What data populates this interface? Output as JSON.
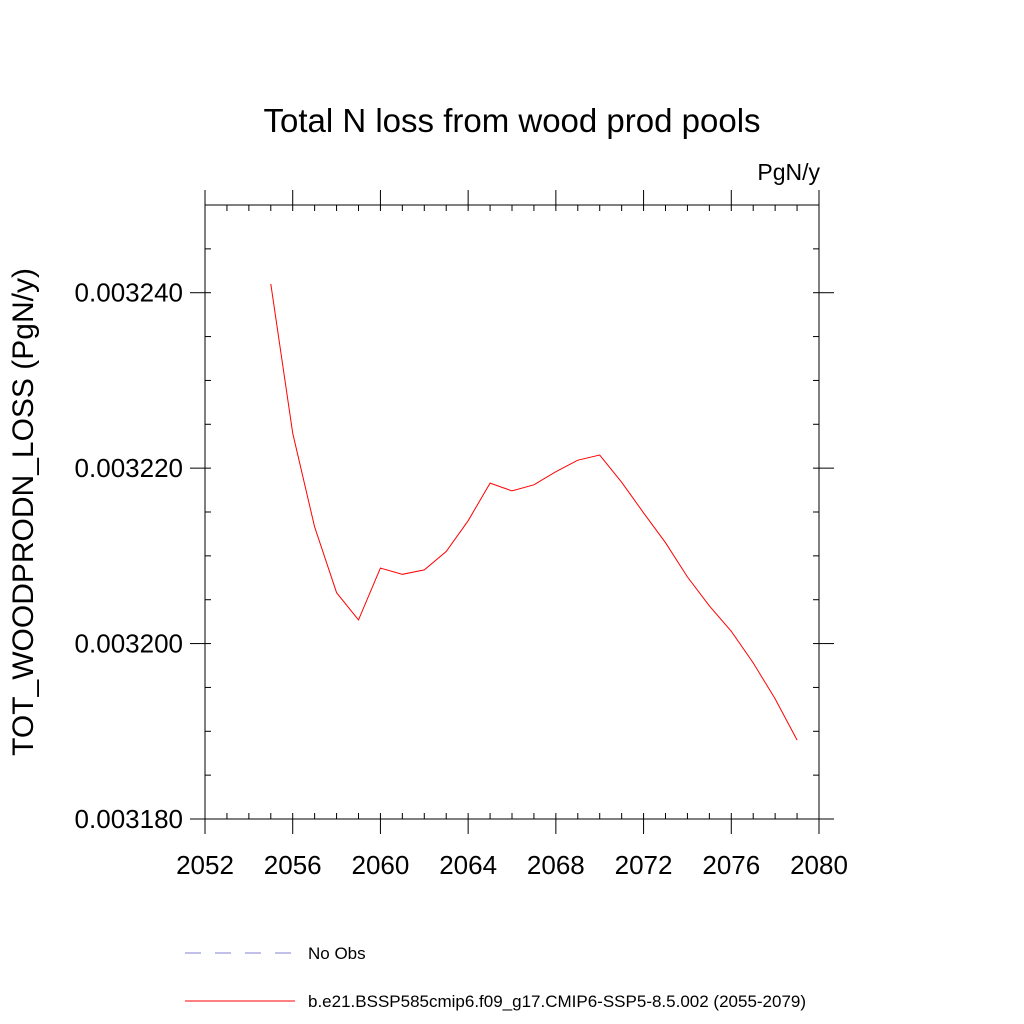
{
  "chart_data": {
    "type": "line",
    "title": "Total N loss from wood prod pools",
    "units_label": "PgN/y",
    "xlabel": "",
    "ylabel": "TOT_WOODPRODN_LOSS  (PgN/y)",
    "xlim": [
      2052,
      2080
    ],
    "ylim": [
      0.00318,
      0.00325
    ],
    "x_ticks": [
      2052,
      2056,
      2060,
      2064,
      2068,
      2072,
      2076,
      2080
    ],
    "x_tick_labels": [
      "2052",
      "2056",
      "2060",
      "2064",
      "2068",
      "2072",
      "2076",
      "2080"
    ],
    "x_minor_step": 1,
    "y_ticks": [
      0.00318,
      0.0032,
      0.00322,
      0.00324
    ],
    "y_tick_labels": [
      "0.003180",
      "0.003200",
      "0.003220",
      "0.003240"
    ],
    "y_minor_step": 5e-06,
    "grid": false,
    "legend_position": "bottom",
    "series": [
      {
        "name": "b.e21.BSSP585cmip6.f09_g17.CMIP6-SSP5-8.5.002 (2055-2079)",
        "color": "#ff0000",
        "style": "solid",
        "x": [
          2055,
          2056,
          2057,
          2058,
          2059,
          2060,
          2061,
          2062,
          2063,
          2064,
          2065,
          2066,
          2067,
          2068,
          2069,
          2070,
          2071,
          2072,
          2073,
          2074,
          2075,
          2076,
          2077,
          2078,
          2079
        ],
        "y": [
          0.003241,
          0.003224,
          0.0032133,
          0.0032058,
          0.0032027,
          0.0032086,
          0.0032079,
          0.0032084,
          0.0032105,
          0.003214,
          0.0032183,
          0.0032174,
          0.0032181,
          0.0032196,
          0.0032209,
          0.0032215,
          0.0032184,
          0.0032149,
          0.0032115,
          0.0032076,
          0.0032043,
          0.0032014,
          0.0031978,
          0.0031937,
          0.003189
        ]
      }
    ],
    "legend_entries": [
      {
        "label": "No Obs",
        "color": "#8080d0",
        "style": "dashed"
      },
      {
        "label": "b.e21.BSSP585cmip6.f09_g17.CMIP6-SSP5-8.5.002 (2055-2079)",
        "color": "#ff0000",
        "style": "solid"
      }
    ]
  }
}
